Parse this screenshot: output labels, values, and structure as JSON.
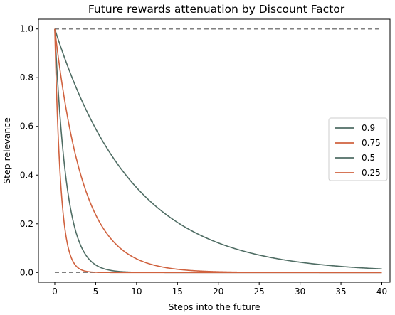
{
  "chart_data": {
    "type": "line",
    "title": "Future rewards attenuation by Discount Factor",
    "xlabel": "Steps into the future",
    "ylabel": "Step relevance",
    "xlim": [
      -2,
      41
    ],
    "ylim": [
      -0.04,
      1.04
    ],
    "x_ticks": [
      "0",
      "5",
      "10",
      "15",
      "20",
      "25",
      "30",
      "35",
      "40"
    ],
    "x_tick_values": [
      0,
      5,
      10,
      15,
      20,
      25,
      30,
      35,
      40
    ],
    "y_ticks": [
      "0.0",
      "0.2",
      "0.4",
      "0.6",
      "0.8",
      "1.0"
    ],
    "y_tick_values": [
      0.0,
      0.2,
      0.4,
      0.6,
      0.8,
      1.0
    ],
    "grid": false,
    "legend_position": "center-right",
    "x": [
      0,
      40
    ],
    "series": [
      {
        "name": "0.9",
        "gamma": 0.9,
        "color": "#4f6d64"
      },
      {
        "name": "0.75",
        "gamma": 0.75,
        "color": "#d0623f"
      },
      {
        "name": "0.5",
        "gamma": 0.5,
        "color": "#4f6d64"
      },
      {
        "name": "0.25",
        "gamma": 0.25,
        "color": "#d0623f"
      }
    ],
    "reference_lines": [
      {
        "y": 1.0,
        "style": "dashed",
        "color": "#808080"
      },
      {
        "y": 0.0,
        "style": "dashed",
        "color": "#808080"
      }
    ]
  }
}
